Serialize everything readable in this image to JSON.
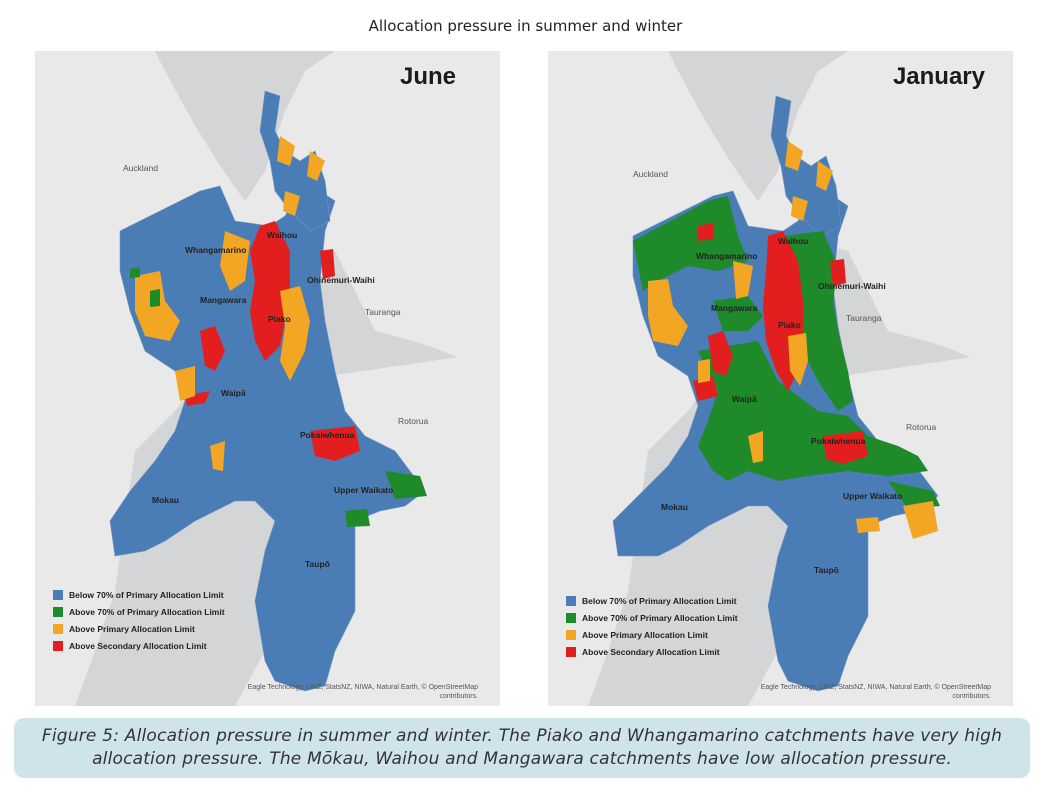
{
  "title": "Allocation pressure in summer and winter",
  "colors": {
    "below70": "#4a7db5",
    "above70": "#1e8a2a",
    "abovePrimary": "#f2a623",
    "aboveSecondary": "#e21e1e",
    "land": "#e9e9ea",
    "sea": "#d4d5d7"
  },
  "maps": [
    {
      "month": "June",
      "legend": [
        {
          "label": "Below 70% of Primary Allocation Limit",
          "color": "#4a7db5"
        },
        {
          "label": "Above 70% of Primary Allocation Limit",
          "color": "#1e8a2a"
        },
        {
          "label": "Above Primary Allocation Limit",
          "color": "#f2a623"
        },
        {
          "label": "Above Secondary Allocation Limit",
          "color": "#e21e1e"
        }
      ],
      "places": {
        "auckland": "Auckland",
        "tauranga": "Tauranga",
        "rotorua": "Rotorua"
      },
      "catchments": {
        "waihou": "Waihou",
        "whangamarino": "Whangamarino",
        "ohinemuri": "Ohinemuri-Waihi",
        "mangawara": "Mangawara",
        "piako": "Piako",
        "waipa": "Waipā",
        "pokaiwhenua": "Pokaiwhenua",
        "upperWaikato": "Upper Waikato",
        "mokau": "Mokau",
        "taupo": "Taupō"
      },
      "attribution": [
        "Eagle Technology, LINZ, StatsNZ, NIWA, Natural Earth, © OpenStreetMap",
        "contributors."
      ]
    },
    {
      "month": "January",
      "legend": [
        {
          "label": "Below 70% of Primary Allocation Limit",
          "color": "#4a7db5"
        },
        {
          "label": "Above 70% of Primary Allocation Limit",
          "color": "#1e8a2a"
        },
        {
          "label": "Above Primary Allocation Limit",
          "color": "#f2a623"
        },
        {
          "label": "Above Secondary Allocation Limit",
          "color": "#e21e1e"
        }
      ],
      "places": {
        "auckland": "Auckland",
        "tauranga": "Tauranga",
        "rotorua": "Rotorua"
      },
      "catchments": {
        "waihou": "Waihou",
        "whangamarino": "Whangamarino",
        "ohinemuri": "Ohinemuri-Waihi",
        "mangawara": "Mangawara",
        "piako": "Piako",
        "waipa": "Waipā",
        "pokaiwhenua": "Pokaiwhenua",
        "upperWaikato": "Upper Waikato",
        "mokau": "Mokau",
        "taupo": "Taupō"
      },
      "attribution": [
        "Eagle Technology, LINZ, StatsNZ, NIWA, Natural Earth, © OpenStreetMap",
        "contributors."
      ]
    }
  ],
  "caption": "Figure 5: Allocation pressure in summer and winter. The Piako and Whangamarino catchments have very high allocation pressure. The Mōkau, Waihou and Mangawara catchments have low allocation pressure."
}
